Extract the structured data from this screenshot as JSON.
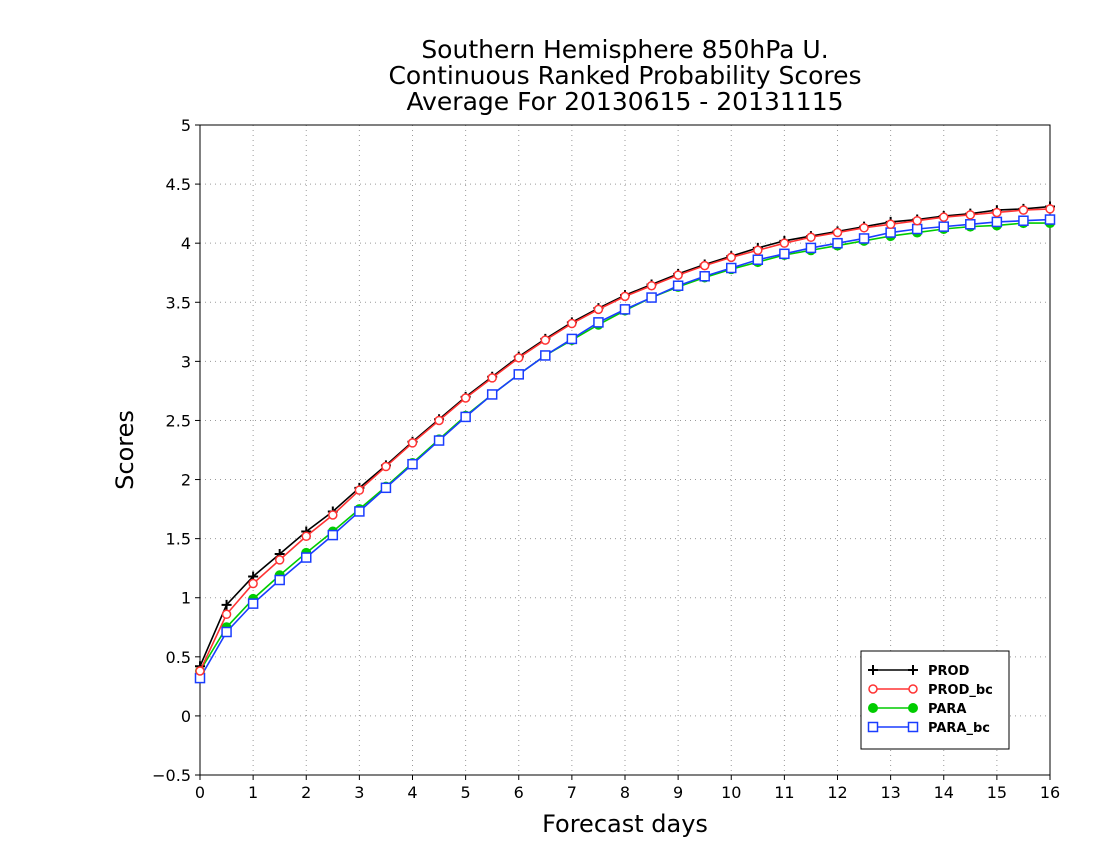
{
  "chart_data": {
    "type": "line",
    "title": [
      "Southern Hemisphere 850hPa U.",
      "Continuous Ranked Probability Scores",
      "Average For 20130615 - 20131115"
    ],
    "xlabel": "Forecast days",
    "ylabel": "Scores",
    "xlim": [
      0,
      16
    ],
    "ylim": [
      -0.5,
      5
    ],
    "xticks": [
      "0",
      "1",
      "2",
      "3",
      "4",
      "5",
      "6",
      "7",
      "8",
      "9",
      "10",
      "11",
      "12",
      "13",
      "14",
      "15",
      "16"
    ],
    "yticks": [
      "−0.5",
      "0",
      "0.5",
      "1",
      "1.5",
      "2",
      "2.5",
      "3",
      "3.5",
      "4",
      "4.5",
      "5"
    ],
    "grid": true,
    "legend_position": "bottom-right",
    "x": [
      0,
      0.5,
      1,
      1.5,
      2,
      2.5,
      3,
      3.5,
      4,
      4.5,
      5,
      5.5,
      6,
      6.5,
      7,
      7.5,
      8,
      8.5,
      9,
      9.5,
      10,
      10.5,
      11,
      11.5,
      12,
      12.5,
      13,
      13.5,
      14,
      14.5,
      15,
      15.5,
      16
    ],
    "series": [
      {
        "name": "PROD",
        "color": "#000000",
        "marker": "plus",
        "values": [
          0.42,
          0.94,
          1.18,
          1.37,
          1.56,
          1.73,
          1.93,
          2.12,
          2.32,
          2.51,
          2.7,
          2.87,
          3.04,
          3.19,
          3.33,
          3.45,
          3.56,
          3.65,
          3.74,
          3.82,
          3.89,
          3.96,
          4.02,
          4.06,
          4.1,
          4.14,
          4.18,
          4.2,
          4.23,
          4.25,
          4.28,
          4.29,
          4.31
        ]
      },
      {
        "name": "PROD_bc",
        "color": "#ff3333",
        "marker": "circle",
        "values": [
          0.38,
          0.86,
          1.12,
          1.32,
          1.52,
          1.7,
          1.91,
          2.11,
          2.31,
          2.5,
          2.69,
          2.86,
          3.03,
          3.18,
          3.32,
          3.44,
          3.55,
          3.64,
          3.73,
          3.81,
          3.88,
          3.94,
          4.0,
          4.05,
          4.09,
          4.13,
          4.16,
          4.19,
          4.22,
          4.24,
          4.26,
          4.28,
          4.29
        ]
      },
      {
        "name": "PARA",
        "color": "#00cc00",
        "marker": "dot",
        "values": [
          0.38,
          0.75,
          0.99,
          1.19,
          1.38,
          1.56,
          1.75,
          1.94,
          2.14,
          2.34,
          2.54,
          2.72,
          2.89,
          3.05,
          3.18,
          3.31,
          3.43,
          3.54,
          3.63,
          3.71,
          3.78,
          3.84,
          3.9,
          3.94,
          3.98,
          4.02,
          4.06,
          4.09,
          4.12,
          4.14,
          4.15,
          4.17,
          4.17
        ]
      },
      {
        "name": "PARA_bc",
        "color": "#1a3dff",
        "marker": "square",
        "values": [
          0.32,
          0.71,
          0.95,
          1.15,
          1.34,
          1.53,
          1.73,
          1.93,
          2.13,
          2.33,
          2.53,
          2.72,
          2.89,
          3.05,
          3.19,
          3.33,
          3.44,
          3.54,
          3.64,
          3.72,
          3.79,
          3.86,
          3.91,
          3.96,
          4.0,
          4.04,
          4.09,
          4.12,
          4.14,
          4.16,
          4.18,
          4.19,
          4.2
        ]
      }
    ]
  }
}
